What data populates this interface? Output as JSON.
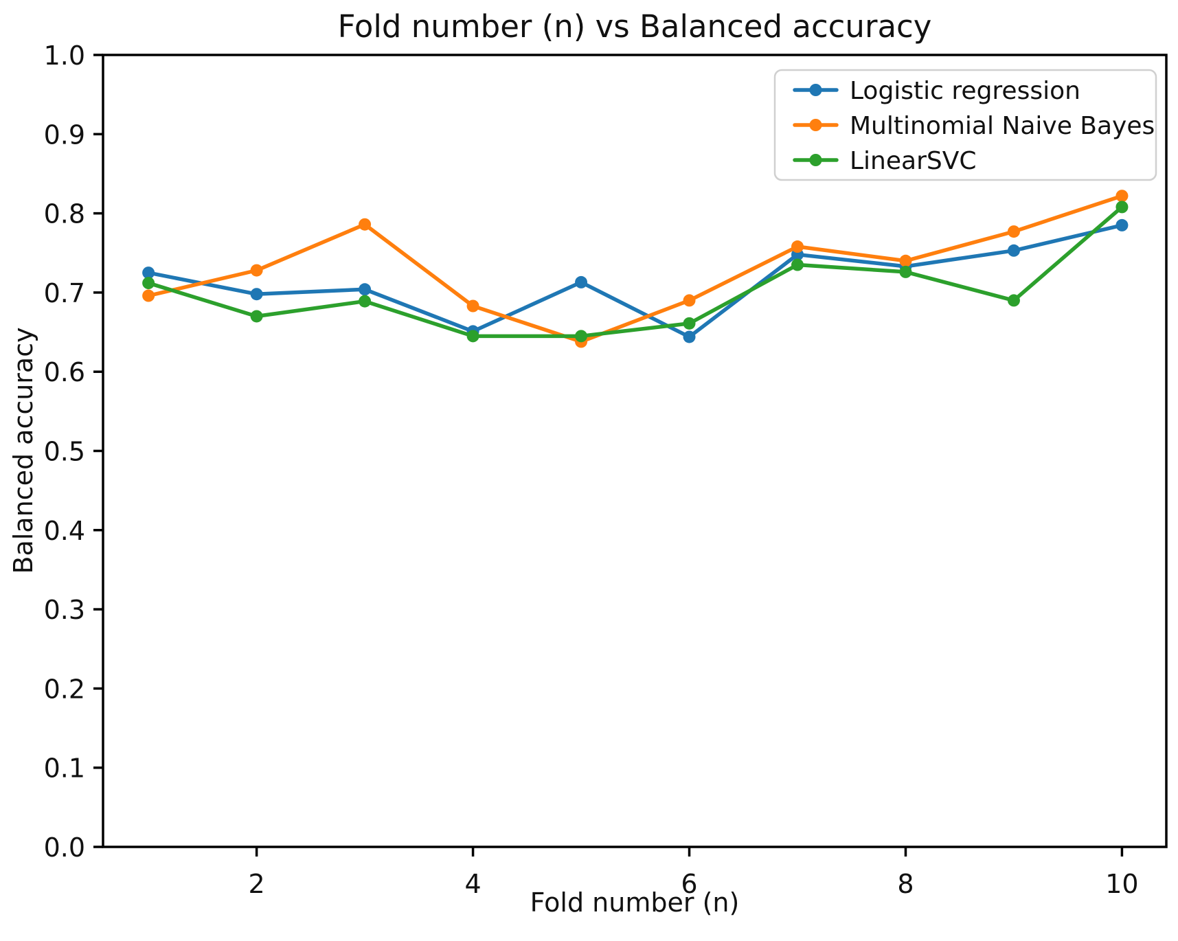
{
  "figure": {
    "background": "#ffffff",
    "text_color": "#111111",
    "spine_color": "#000000",
    "legend_border_color": "#d0d0d0"
  },
  "chart_data": {
    "type": "line",
    "title": "Fold number (n) vs Balanced accuracy",
    "xlabel": "Fold number (n)",
    "ylabel": "Balanced accuracy",
    "x": [
      1,
      2,
      3,
      4,
      5,
      6,
      7,
      8,
      9,
      10
    ],
    "series": [
      {
        "name": "Logistic regression",
        "color": "#1f77b4",
        "values": [
          0.725,
          0.698,
          0.704,
          0.651,
          0.713,
          0.644,
          0.748,
          0.733,
          0.753,
          0.785
        ]
      },
      {
        "name": "Multinomial Naive Bayes",
        "color": "#ff7f0e",
        "values": [
          0.696,
          0.728,
          0.786,
          0.683,
          0.638,
          0.69,
          0.758,
          0.74,
          0.777,
          0.822
        ]
      },
      {
        "name": "LinearSVC",
        "color": "#2ca02c",
        "values": [
          0.712,
          0.67,
          0.689,
          0.645,
          0.645,
          0.661,
          0.735,
          0.726,
          0.69,
          0.808
        ]
      }
    ],
    "xlim": [
      0.58,
      10.41
    ],
    "ylim": [
      0.0,
      1.0
    ],
    "x_ticks": [
      2,
      4,
      6,
      8,
      10
    ],
    "y_ticks": [
      0.0,
      0.1,
      0.2,
      0.3,
      0.4,
      0.5,
      0.6,
      0.7,
      0.8,
      0.9,
      1.0
    ],
    "grid": false,
    "legend": {
      "position": "upper right",
      "entries": [
        "Logistic regression",
        "Multinomial Naive Bayes",
        "LinearSVC"
      ]
    }
  }
}
